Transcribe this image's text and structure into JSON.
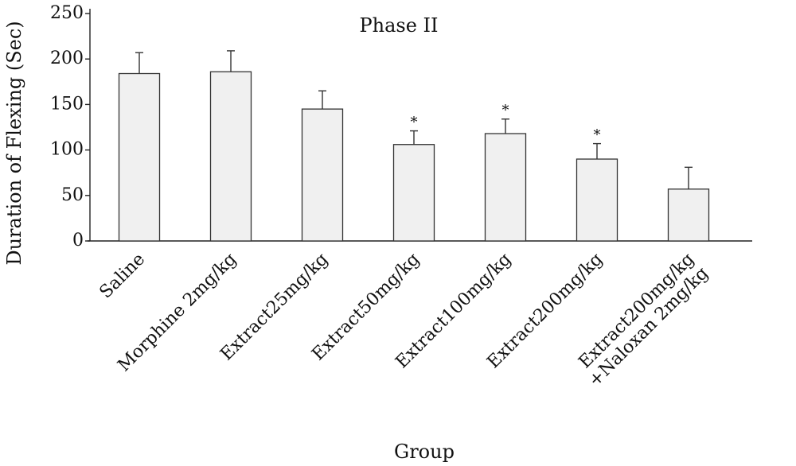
{
  "chart_data": {
    "type": "bar",
    "title": "Phase II",
    "xlabel": "Group",
    "ylabel": "Duration of Flexing (Sec)",
    "ylim": [
      0,
      250
    ],
    "yticks": [
      0,
      50,
      100,
      150,
      200,
      250
    ],
    "categories": [
      [
        "Saline"
      ],
      [
        "Morphine 2mg/kg"
      ],
      [
        "Extract25mg/kg"
      ],
      [
        "Extract50mg/kg"
      ],
      [
        "Extract100mg/kg"
      ],
      [
        "Extract200mg/kg"
      ],
      [
        "Extract200mg/kg",
        "+Naloxan 2mg/kg"
      ]
    ],
    "values": [
      184,
      186,
      145,
      106,
      118,
      90,
      57
    ],
    "errors": [
      23,
      23,
      20,
      15,
      16,
      17,
      24
    ],
    "significance": [
      "",
      "",
      "",
      "*",
      "*",
      "*",
      ""
    ],
    "grid": false,
    "legend": "none",
    "colors": {
      "bar_fill": "#f0f0f0",
      "bar_stroke": "#333333"
    }
  }
}
